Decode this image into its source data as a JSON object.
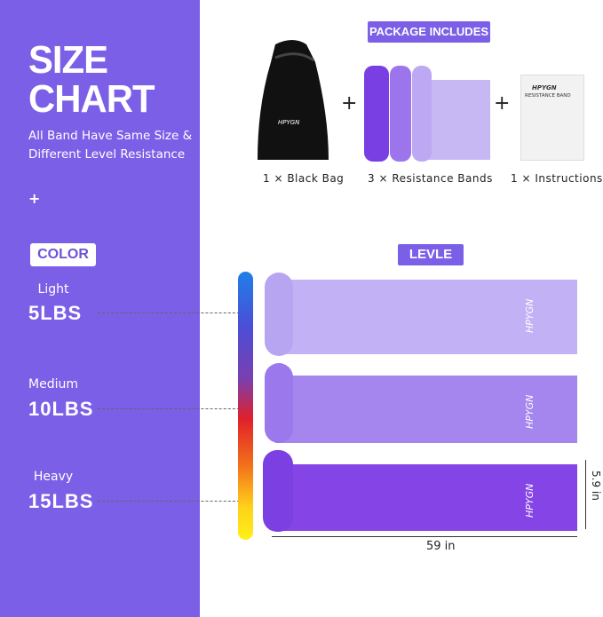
{
  "left": {
    "title_line1": "SIZE",
    "title_line2": "CHART",
    "subtitle": "All Band Have Same Size & Different Level Resistance",
    "plus": "+",
    "color_tag": "COLOR",
    "levels": [
      {
        "name": "Light",
        "weight": "5LBS"
      },
      {
        "name": "Medium",
        "weight": "10LBS"
      },
      {
        "name": "Heavy",
        "weight": "15LBS"
      }
    ]
  },
  "package": {
    "heading": "PACKAGE INCLUDES",
    "plus": "+",
    "items": [
      "1 × Black Bag",
      "3 × Resistance Bands",
      "1 × Instructions"
    ],
    "brand": "HPYGN",
    "instructions_title": "RESISTANCE BAND"
  },
  "level_tag": "LEVLE",
  "dimensions": {
    "width": "5.9 in",
    "length": "59 in"
  },
  "colors": {
    "panel": "#7b5fe6",
    "light_band": "#b7a5f2",
    "medium_band": "#9b78ec",
    "heavy_band": "#7b3fe2"
  }
}
